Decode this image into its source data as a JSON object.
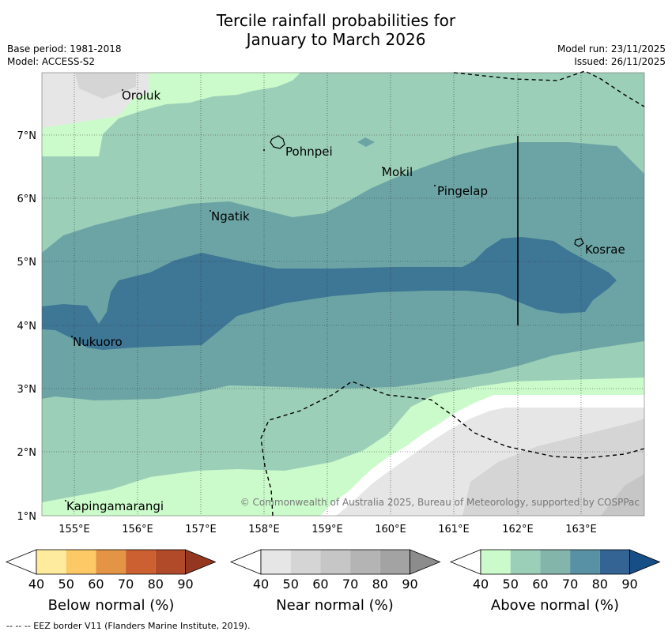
{
  "title": {
    "line1": "Tercile rainfall probabilities for",
    "line2": "January to March 2026"
  },
  "meta": {
    "base_period": "Base period: 1981-2018",
    "model": "Model: ACCESS-S2",
    "model_run": "Model run: 23/11/2025",
    "issued": "Issued: 26/11/2025"
  },
  "map": {
    "lat_labels": [
      "7°N",
      "6°N",
      "5°N",
      "4°N",
      "3°N",
      "2°N",
      "1°N"
    ],
    "lon_labels": [
      "155°E",
      "156°E",
      "157°E",
      "158°E",
      "159°E",
      "160°E",
      "161°E",
      "162°E",
      "163°E"
    ],
    "places": [
      {
        "name": "Oroluk"
      },
      {
        "name": "Pohnpei"
      },
      {
        "name": "Mokil"
      },
      {
        "name": "Pingelap"
      },
      {
        "name": "Ngatik"
      },
      {
        "name": "Kosrae"
      },
      {
        "name": "Nukuoro"
      },
      {
        "name": "Kapingamarangi"
      }
    ],
    "copyright": "© Commonwealth of Australia 2025, Bureau of Meteorology, supported by COSPPac"
  },
  "legends": [
    {
      "name": "below",
      "label": "Below normal (%)",
      "ticks": [
        "40",
        "50",
        "60",
        "70",
        "80",
        "90"
      ],
      "colors": [
        "#ffffff",
        "#ffeb9e",
        "#fdc966",
        "#e39445",
        "#cc6030",
        "#b04a28",
        "#953620"
      ]
    },
    {
      "name": "near",
      "label": "Near normal (%)",
      "ticks": [
        "40",
        "50",
        "60",
        "70",
        "80",
        "90"
      ],
      "colors": [
        "#ffffff",
        "#e6e6e6",
        "#d5d5d5",
        "#c6c6c6",
        "#b4b4b4",
        "#a3a3a3",
        "#8c8c8c"
      ]
    },
    {
      "name": "above",
      "label": "Above normal (%)",
      "ticks": [
        "40",
        "50",
        "60",
        "70",
        "80",
        "90"
      ],
      "colors": [
        "#ffffff",
        "#cbfbcb",
        "#9ccfb8",
        "#84b5aa",
        "#5891a3",
        "#336493",
        "#174e86"
      ]
    }
  ],
  "footer": "--  --  -- EEZ border V11 (Flanders Marine Institute, 2019)."
}
